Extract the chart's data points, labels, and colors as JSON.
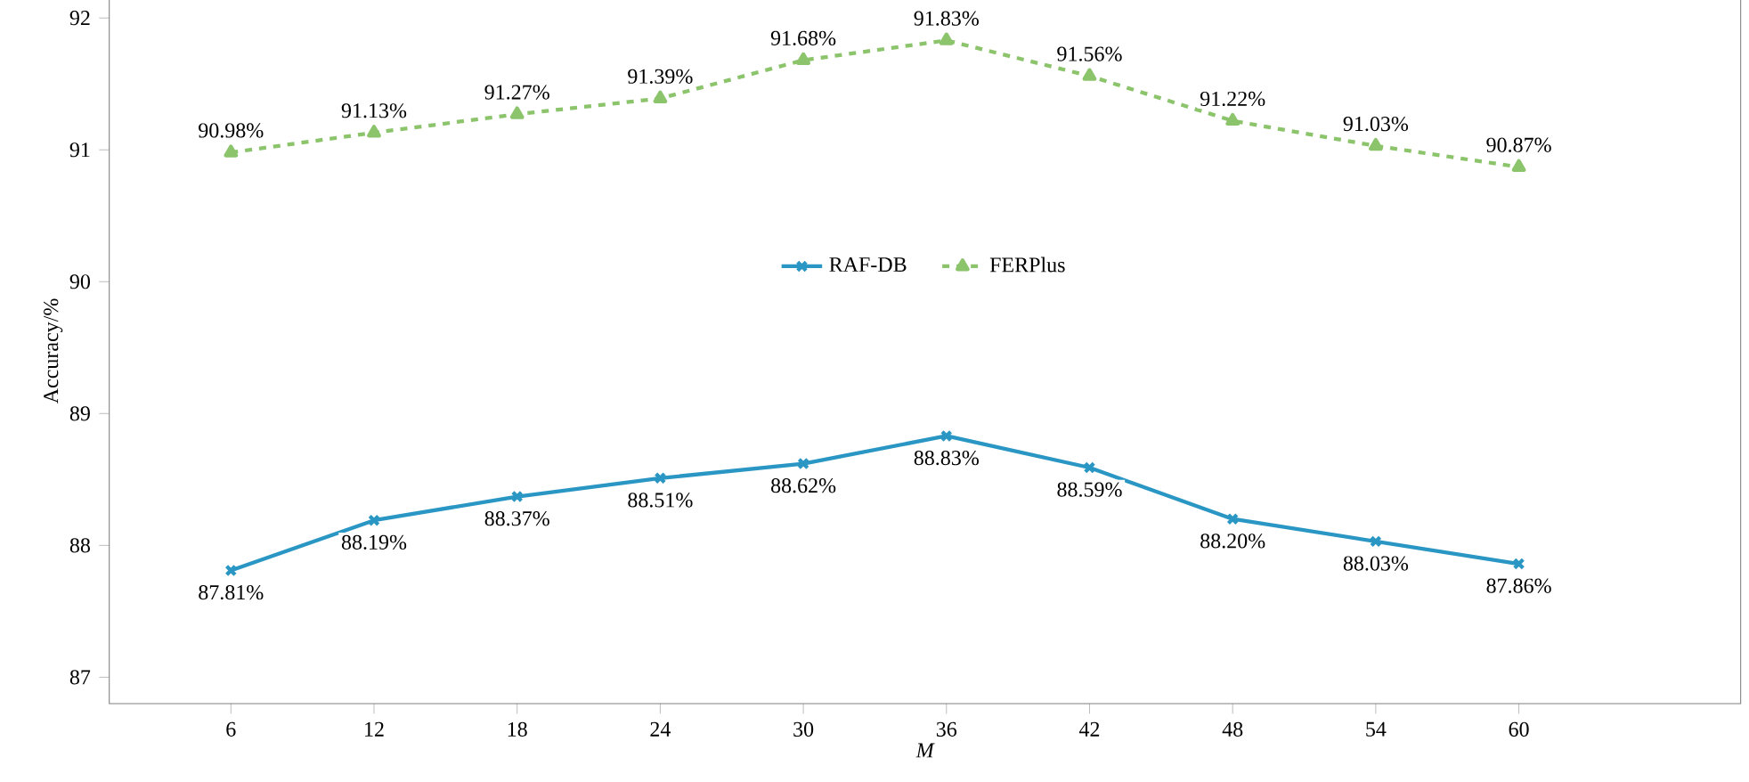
{
  "chart_data": {
    "type": "line",
    "xlabel": "M",
    "ylabel": "Accuracy/%",
    "categories": [
      "6",
      "12",
      "18",
      "24",
      "30",
      "36",
      "42",
      "48",
      "54",
      "60"
    ],
    "ylim": [
      86.8,
      92.15
    ],
    "yticks": [
      87,
      88,
      89,
      90,
      91,
      92
    ],
    "legend": "center",
    "grid": false,
    "series": [
      {
        "name": "RAF-DB",
        "color": "#2a96c4",
        "marker": "cross",
        "line_style": "solid",
        "values": [
          87.81,
          88.19,
          88.37,
          88.51,
          88.62,
          88.83,
          88.59,
          88.2,
          88.03,
          87.86
        ],
        "value_labels": [
          "87.81%",
          "88.19%",
          "88.37%",
          "88.51%",
          "88.62%",
          "88.83%",
          "88.59%",
          "88.20%",
          "88.03%",
          "87.86%"
        ]
      },
      {
        "name": "FERPlus",
        "color": "#8cc46c",
        "marker": "triangle",
        "line_style": "dashed",
        "values": [
          90.98,
          91.13,
          91.27,
          91.39,
          91.68,
          91.83,
          91.56,
          91.22,
          91.03,
          90.87
        ],
        "value_labels": [
          "90.98%",
          "91.13%",
          "91.27%",
          "91.39%",
          "91.68%",
          "91.83%",
          "91.56%",
          "91.22%",
          "91.03%",
          "90.87%"
        ]
      }
    ]
  }
}
